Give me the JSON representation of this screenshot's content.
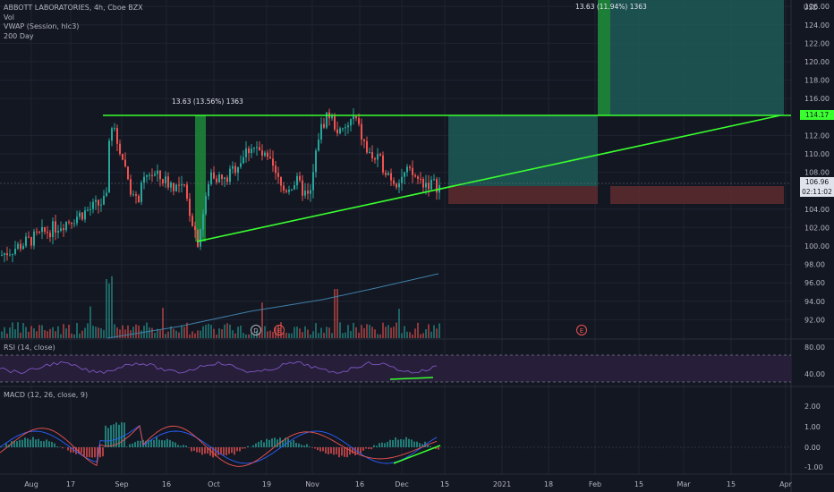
{
  "legend": {
    "symbol": "ABBOTT LABORATORIES, 4h, Cboe BZX",
    "vol": "Vol",
    "vwap": "VWAP (Session, hlc3)",
    "ma": "200 Day"
  },
  "currency": "USD",
  "price_ticks": [
    "126.00",
    "124.00",
    "122.00",
    "120.00",
    "118.00",
    "116.00",
    "112.00",
    "110.00",
    "108.00",
    "104.00",
    "102.00",
    "100.00",
    "98.00",
    "96.00",
    "94.00",
    "92.00"
  ],
  "price_tag_resistance": "114.17",
  "price_tag_last": "106.96",
  "price_tag_countdown": "02:11:02",
  "measure_left": "13.63 (13.56%) 1363",
  "measure_right": "13.63 (11.94%) 1363",
  "earnings_markers": [
    "D",
    "E",
    "E"
  ],
  "rsi": {
    "label": "RSI (14, close)",
    "ticks": [
      "80.00",
      "40.00"
    ]
  },
  "macd": {
    "label": "MACD (12, 26, close, 9)",
    "ticks": [
      "2.00",
      "1.00",
      "0.00",
      "-1.00"
    ]
  },
  "time_ticks": [
    "Aug",
    "17",
    "Sep",
    "16",
    "Oct",
    "19",
    "Nov",
    "16",
    "Dec",
    "15",
    "2021",
    "18",
    "Feb",
    "15",
    "Mar",
    "15",
    "Apr"
  ],
  "colors": {
    "bg": "#131722",
    "grid": "#1f2330",
    "up": "#26a69a",
    "down": "#ef5350",
    "trend": "#39ff2e",
    "target_zone": "#1f5a57",
    "stop_zone": "#5a2a2f",
    "rsi_band": "#2a1f3d"
  }
}
